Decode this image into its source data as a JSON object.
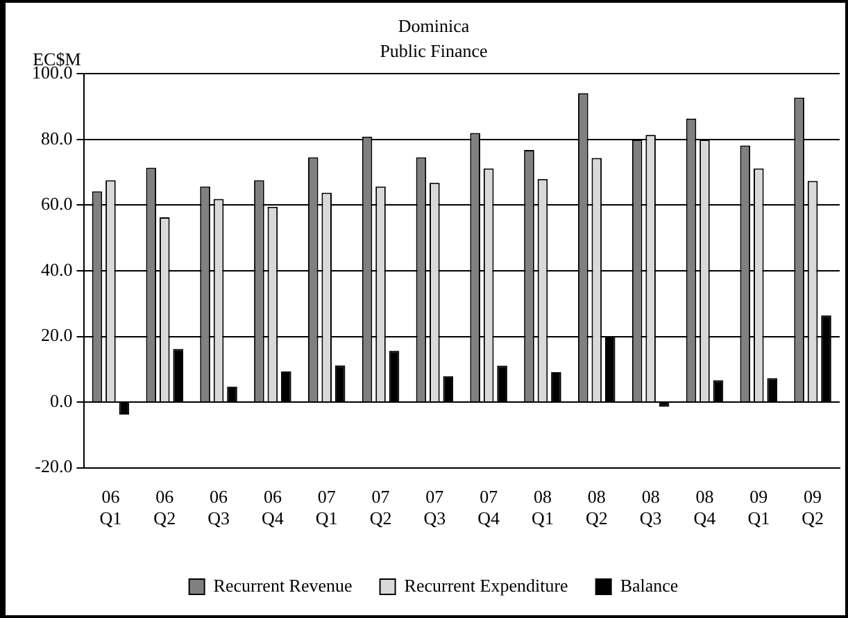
{
  "chart_data": {
    "type": "bar",
    "title": "Dominica",
    "subtitle": "Public Finance",
    "ylabel": "EC$M",
    "categories": [
      "06 Q1",
      "06 Q2",
      "06 Q3",
      "06 Q4",
      "07 Q1",
      "07 Q2",
      "07 Q3",
      "07 Q4",
      "08 Q1",
      "08 Q2",
      "08 Q3",
      "08 Q4",
      "09 Q1",
      "09 Q2"
    ],
    "series": [
      {
        "name": "Recurrent Revenue",
        "color": "#808080",
        "values": [
          64.2,
          71.4,
          65.7,
          67.6,
          74.6,
          80.9,
          74.6,
          82.0,
          76.8,
          94.1,
          80.0,
          86.4,
          78.2,
          92.8
        ]
      },
      {
        "name": "Recurrent Expenditure",
        "color": "#d9d9d9",
        "values": [
          67.6,
          56.3,
          61.9,
          59.5,
          63.8,
          65.7,
          66.8,
          71.2,
          68.0,
          74.4,
          81.4,
          80.0,
          71.2,
          67.4
        ]
      },
      {
        "name": "Balance",
        "color": "#000000",
        "values": [
          -3.8,
          16.2,
          4.7,
          9.3,
          11.2,
          15.6,
          7.9,
          11.1,
          9.1,
          20.1,
          -1.4,
          6.7,
          7.3,
          26.4
        ]
      }
    ],
    "ylim": [
      -20,
      100
    ],
    "yticks": [
      {
        "value": -20,
        "label": "-20.0"
      },
      {
        "value": 0,
        "label": "0.0"
      },
      {
        "value": 20,
        "label": "20.0"
      },
      {
        "value": 40,
        "label": "40.0"
      },
      {
        "value": 60,
        "label": "60.0"
      },
      {
        "value": 80,
        "label": "80.0"
      },
      {
        "value": 100,
        "label": "100.0"
      }
    ],
    "grid": "y",
    "legend": "bottom"
  }
}
